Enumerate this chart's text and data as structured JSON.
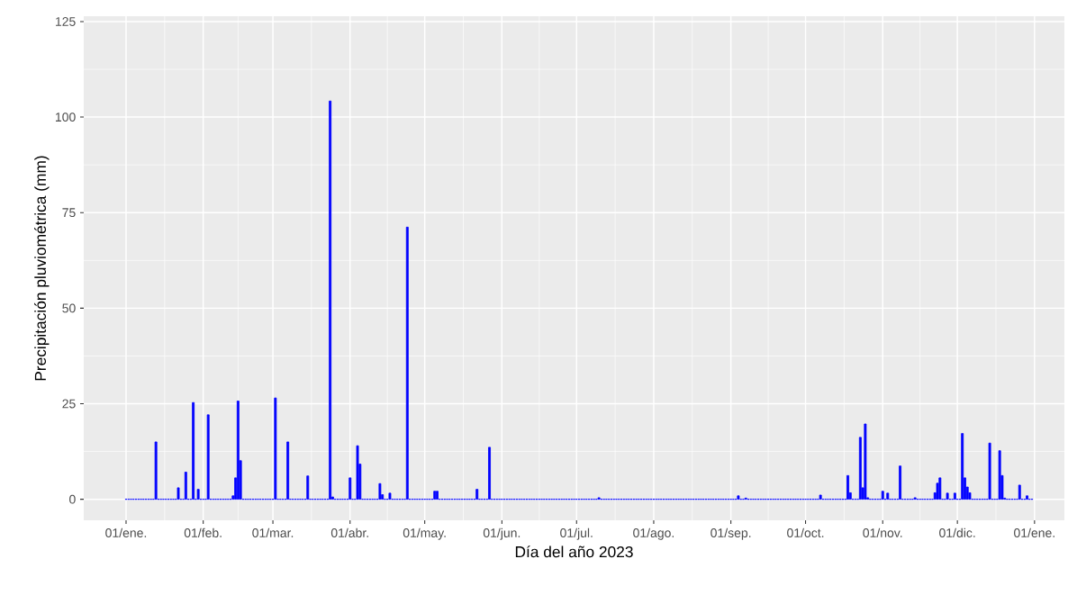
{
  "chart_data": {
    "type": "bar",
    "xlabel": "Día del año 2023",
    "ylabel": "Precipitación pluviométrica (mm)",
    "color": "#0000ff",
    "grid": true,
    "xlim": [
      "2022-12-15",
      "2024-01-13"
    ],
    "ylim": [
      -5.5,
      126.4
    ],
    "xticks": [
      {
        "value": "2023-01-01",
        "label": "01/ene."
      },
      {
        "value": "2023-02-01",
        "label": "01/feb."
      },
      {
        "value": "2023-03-01",
        "label": "01/mar."
      },
      {
        "value": "2023-04-01",
        "label": "01/abr."
      },
      {
        "value": "2023-05-01",
        "label": "01/may."
      },
      {
        "value": "2023-06-01",
        "label": "01/jun."
      },
      {
        "value": "2023-07-01",
        "label": "01/jul."
      },
      {
        "value": "2023-08-01",
        "label": "01/ago."
      },
      {
        "value": "2023-09-01",
        "label": "01/sep."
      },
      {
        "value": "2023-10-01",
        "label": "01/oct."
      },
      {
        "value": "2023-11-01",
        "label": "01/nov."
      },
      {
        "value": "2023-12-01",
        "label": "01/dic."
      },
      {
        "value": "2024-01-01",
        "label": "01/ene."
      }
    ],
    "yticks": [
      0,
      25,
      50,
      75,
      100,
      125
    ],
    "x": [
      "2023-01-01",
      "2023-01-02",
      "2023-01-03",
      "2023-01-04",
      "2023-01-05",
      "2023-01-06",
      "2023-01-07",
      "2023-01-08",
      "2023-01-09",
      "2023-01-10",
      "2023-01-11",
      "2023-01-12",
      "2023-01-13",
      "2023-01-14",
      "2023-01-15",
      "2023-01-16",
      "2023-01-17",
      "2023-01-18",
      "2023-01-19",
      "2023-01-20",
      "2023-01-21",
      "2023-01-22",
      "2023-01-23",
      "2023-01-24",
      "2023-01-25",
      "2023-01-26",
      "2023-01-27",
      "2023-01-28",
      "2023-01-29",
      "2023-01-30",
      "2023-01-31",
      "2023-02-01",
      "2023-02-02",
      "2023-02-03",
      "2023-02-04",
      "2023-02-05",
      "2023-02-06",
      "2023-02-07",
      "2023-02-08",
      "2023-02-09",
      "2023-02-10",
      "2023-02-11",
      "2023-02-12",
      "2023-02-13",
      "2023-02-14",
      "2023-02-15",
      "2023-02-16",
      "2023-02-17",
      "2023-02-18",
      "2023-02-19",
      "2023-02-20",
      "2023-02-21",
      "2023-02-22",
      "2023-02-23",
      "2023-02-24",
      "2023-02-25",
      "2023-02-26",
      "2023-02-27",
      "2023-02-28",
      "2023-03-01",
      "2023-03-02",
      "2023-03-03",
      "2023-03-04",
      "2023-03-05",
      "2023-03-06",
      "2023-03-07",
      "2023-03-08",
      "2023-03-09",
      "2023-03-10",
      "2023-03-11",
      "2023-03-12",
      "2023-03-13",
      "2023-03-14",
      "2023-03-15",
      "2023-03-16",
      "2023-03-17",
      "2023-03-18",
      "2023-03-19",
      "2023-03-20",
      "2023-03-21",
      "2023-03-22",
      "2023-03-23",
      "2023-03-24",
      "2023-03-25",
      "2023-03-26",
      "2023-03-27",
      "2023-03-28",
      "2023-03-29",
      "2023-03-30",
      "2023-03-31",
      "2023-04-01",
      "2023-04-02",
      "2023-04-03",
      "2023-04-04",
      "2023-04-05",
      "2023-04-06",
      "2023-04-07",
      "2023-04-08",
      "2023-04-09",
      "2023-04-10",
      "2023-04-11",
      "2023-04-12",
      "2023-04-13",
      "2023-04-14",
      "2023-04-15",
      "2023-04-16",
      "2023-04-17",
      "2023-04-18",
      "2023-04-19",
      "2023-04-20",
      "2023-04-21",
      "2023-04-22",
      "2023-04-23",
      "2023-04-24",
      "2023-04-25",
      "2023-04-26",
      "2023-04-27",
      "2023-04-28",
      "2023-04-29",
      "2023-04-30",
      "2023-05-01",
      "2023-05-02",
      "2023-05-03",
      "2023-05-04",
      "2023-05-05",
      "2023-05-06",
      "2023-05-07",
      "2023-05-08",
      "2023-05-09",
      "2023-05-10",
      "2023-05-11",
      "2023-05-12",
      "2023-05-13",
      "2023-05-14",
      "2023-05-15",
      "2023-05-16",
      "2023-05-17",
      "2023-05-18",
      "2023-05-19",
      "2023-05-20",
      "2023-05-21",
      "2023-05-22",
      "2023-05-23",
      "2023-05-24",
      "2023-05-25",
      "2023-05-26",
      "2023-05-27",
      "2023-05-28",
      "2023-05-29",
      "2023-05-30",
      "2023-05-31",
      "2023-06-01",
      "2023-06-02",
      "2023-06-03",
      "2023-06-04",
      "2023-06-05",
      "2023-06-06",
      "2023-06-07",
      "2023-06-08",
      "2023-06-09",
      "2023-06-10",
      "2023-06-11",
      "2023-06-12",
      "2023-06-13",
      "2023-06-14",
      "2023-06-15",
      "2023-06-16",
      "2023-06-17",
      "2023-06-18",
      "2023-06-19",
      "2023-06-20",
      "2023-06-21",
      "2023-06-22",
      "2023-06-23",
      "2023-06-24",
      "2023-06-25",
      "2023-06-26",
      "2023-06-27",
      "2023-06-28",
      "2023-06-29",
      "2023-06-30",
      "2023-07-01",
      "2023-07-02",
      "2023-07-03",
      "2023-07-04",
      "2023-07-05",
      "2023-07-06",
      "2023-07-07",
      "2023-07-08",
      "2023-07-09",
      "2023-07-10",
      "2023-07-11",
      "2023-07-12",
      "2023-07-13",
      "2023-07-14",
      "2023-07-15",
      "2023-07-16",
      "2023-07-17",
      "2023-07-18",
      "2023-07-19",
      "2023-07-20",
      "2023-07-21",
      "2023-07-22",
      "2023-07-23",
      "2023-07-24",
      "2023-07-25",
      "2023-07-26",
      "2023-07-27",
      "2023-07-28",
      "2023-07-29",
      "2023-07-30",
      "2023-07-31",
      "2023-08-01",
      "2023-08-02",
      "2023-08-03",
      "2023-08-04",
      "2023-08-05",
      "2023-08-06",
      "2023-08-07",
      "2023-08-08",
      "2023-08-09",
      "2023-08-10",
      "2023-08-11",
      "2023-08-12",
      "2023-08-13",
      "2023-08-14",
      "2023-08-15",
      "2023-08-16",
      "2023-08-17",
      "2023-08-18",
      "2023-08-19",
      "2023-08-20",
      "2023-08-21",
      "2023-08-22",
      "2023-08-23",
      "2023-08-24",
      "2023-08-25",
      "2023-08-26",
      "2023-08-27",
      "2023-08-28",
      "2023-08-29",
      "2023-08-30",
      "2023-08-31",
      "2023-09-01",
      "2023-09-02",
      "2023-09-03",
      "2023-09-04",
      "2023-09-05",
      "2023-09-06",
      "2023-09-07",
      "2023-09-08",
      "2023-09-09",
      "2023-09-10",
      "2023-09-11",
      "2023-09-12",
      "2023-09-13",
      "2023-09-14",
      "2023-09-15",
      "2023-09-16",
      "2023-09-17",
      "2023-09-18",
      "2023-09-19",
      "2023-09-20",
      "2023-09-21",
      "2023-09-22",
      "2023-09-23",
      "2023-09-24",
      "2023-09-25",
      "2023-09-26",
      "2023-09-27",
      "2023-09-28",
      "2023-09-29",
      "2023-09-30",
      "2023-10-01",
      "2023-10-02",
      "2023-10-03",
      "2023-10-04",
      "2023-10-05",
      "2023-10-06",
      "2023-10-07",
      "2023-10-08",
      "2023-10-09",
      "2023-10-10",
      "2023-10-11",
      "2023-10-12",
      "2023-10-13",
      "2023-10-14",
      "2023-10-15",
      "2023-10-16",
      "2023-10-17",
      "2023-10-18",
      "2023-10-19",
      "2023-10-20",
      "2023-10-21",
      "2023-10-22",
      "2023-10-23",
      "2023-10-24",
      "2023-10-25",
      "2023-10-26",
      "2023-10-27",
      "2023-10-28",
      "2023-10-29",
      "2023-10-30",
      "2023-10-31",
      "2023-11-01",
      "2023-11-02",
      "2023-11-03",
      "2023-11-04",
      "2023-11-05",
      "2023-11-06",
      "2023-11-07",
      "2023-11-08",
      "2023-11-09",
      "2023-11-10",
      "2023-11-11",
      "2023-11-12",
      "2023-11-13",
      "2023-11-14",
      "2023-11-15",
      "2023-11-16",
      "2023-11-17",
      "2023-11-18",
      "2023-11-19",
      "2023-11-20",
      "2023-11-21",
      "2023-11-22",
      "2023-11-23",
      "2023-11-24",
      "2023-11-25",
      "2023-11-26",
      "2023-11-27",
      "2023-11-28",
      "2023-11-29",
      "2023-11-30",
      "2023-12-01",
      "2023-12-02",
      "2023-12-03",
      "2023-12-04",
      "2023-12-05",
      "2023-12-06",
      "2023-12-07",
      "2023-12-08",
      "2023-12-09",
      "2023-12-10",
      "2023-12-11",
      "2023-12-12",
      "2023-12-13",
      "2023-12-14",
      "2023-12-15",
      "2023-12-16",
      "2023-12-17",
      "2023-12-18",
      "2023-12-19",
      "2023-12-20",
      "2023-12-21",
      "2023-12-22",
      "2023-12-23",
      "2023-12-24",
      "2023-12-25",
      "2023-12-26",
      "2023-12-27",
      "2023-12-28",
      "2023-12-29",
      "2023-12-30",
      "2023-12-31"
    ],
    "values": [
      0,
      0,
      0,
      0,
      0,
      0,
      0,
      0,
      0,
      0,
      0,
      0,
      15.0,
      0,
      0,
      0,
      0,
      0,
      0,
      0,
      0,
      3.0,
      0,
      0,
      7.1,
      0,
      0,
      25.3,
      0,
      2.6,
      0,
      0,
      0,
      22.1,
      0,
      0,
      0,
      0,
      0,
      0,
      0,
      0,
      0,
      0.9,
      5.6,
      25.7,
      10.1,
      0,
      0,
      0,
      0,
      0,
      0,
      0,
      0,
      0,
      0,
      0,
      0,
      0,
      26.5,
      0,
      0,
      0,
      0,
      15.0,
      0,
      0,
      0,
      0,
      0,
      0,
      0,
      6.1,
      0,
      0,
      0,
      0,
      0,
      0,
      0,
      0,
      104.2,
      0.6,
      0,
      0,
      0,
      0,
      0,
      0,
      5.6,
      0,
      0,
      14.0,
      9.2,
      0,
      0,
      0,
      0,
      0,
      0,
      0,
      4.1,
      1.2,
      0,
      0,
      1.6,
      0,
      0,
      0,
      0,
      0,
      0,
      71.2,
      0,
      0,
      0,
      0,
      0,
      0,
      0,
      0,
      0,
      0,
      2.1,
      2.1,
      0,
      0,
      0,
      0,
      0,
      0,
      0,
      0,
      0,
      0,
      0,
      0,
      0,
      0,
      0,
      2.6,
      0,
      0,
      0,
      0,
      13.6,
      0,
      0,
      0,
      0,
      0,
      0,
      0,
      0,
      0,
      0,
      0,
      0,
      0,
      0,
      0,
      0,
      0,
      0,
      0,
      0,
      0,
      0,
      0,
      0,
      0,
      0,
      0,
      0,
      0,
      0,
      0,
      0,
      0,
      0,
      0,
      0,
      0,
      0,
      0,
      0,
      0,
      0,
      0,
      0.4,
      0,
      0,
      0,
      0,
      0,
      0,
      0,
      0,
      0,
      0,
      0,
      0,
      0,
      0,
      0,
      0,
      0,
      0,
      0,
      0,
      0,
      0,
      0,
      0,
      0,
      0,
      0,
      0,
      0,
      0,
      0,
      0,
      0,
      0,
      0,
      0,
      0,
      0,
      0,
      0,
      0,
      0,
      0,
      0,
      0,
      0,
      0,
      0,
      0,
      0,
      0,
      0,
      0,
      0,
      0,
      0.9,
      0,
      0,
      0.3,
      0,
      0,
      0,
      0,
      0,
      0,
      0,
      0,
      0,
      0,
      0,
      0,
      0,
      0,
      0,
      0,
      0,
      0,
      0,
      0,
      0,
      0,
      0,
      0,
      0,
      0,
      0,
      0,
      0,
      1.1,
      0,
      0,
      0,
      0,
      0,
      0,
      0,
      0,
      0,
      0,
      6.2,
      1.7,
      0,
      0,
      0,
      16.2,
      3.0,
      19.7,
      0.4,
      0,
      0,
      0,
      0,
      0,
      2.1,
      0,
      1.6,
      0,
      0,
      0,
      0,
      8.7,
      0,
      0,
      0,
      0,
      0,
      0.4,
      0,
      0,
      0,
      0,
      0,
      0,
      0,
      1.7,
      4.2,
      5.6,
      0,
      0,
      1.6,
      0,
      0,
      1.6,
      0,
      0,
      17.2,
      5.6,
      3.2,
      1.7,
      0,
      0,
      0,
      0,
      0,
      0,
      0,
      14.7,
      0,
      0,
      0,
      12.7,
      6.2,
      0.3,
      0,
      0,
      0,
      0,
      0,
      3.7,
      0,
      0,
      0.9,
      0,
      0
    ]
  }
}
